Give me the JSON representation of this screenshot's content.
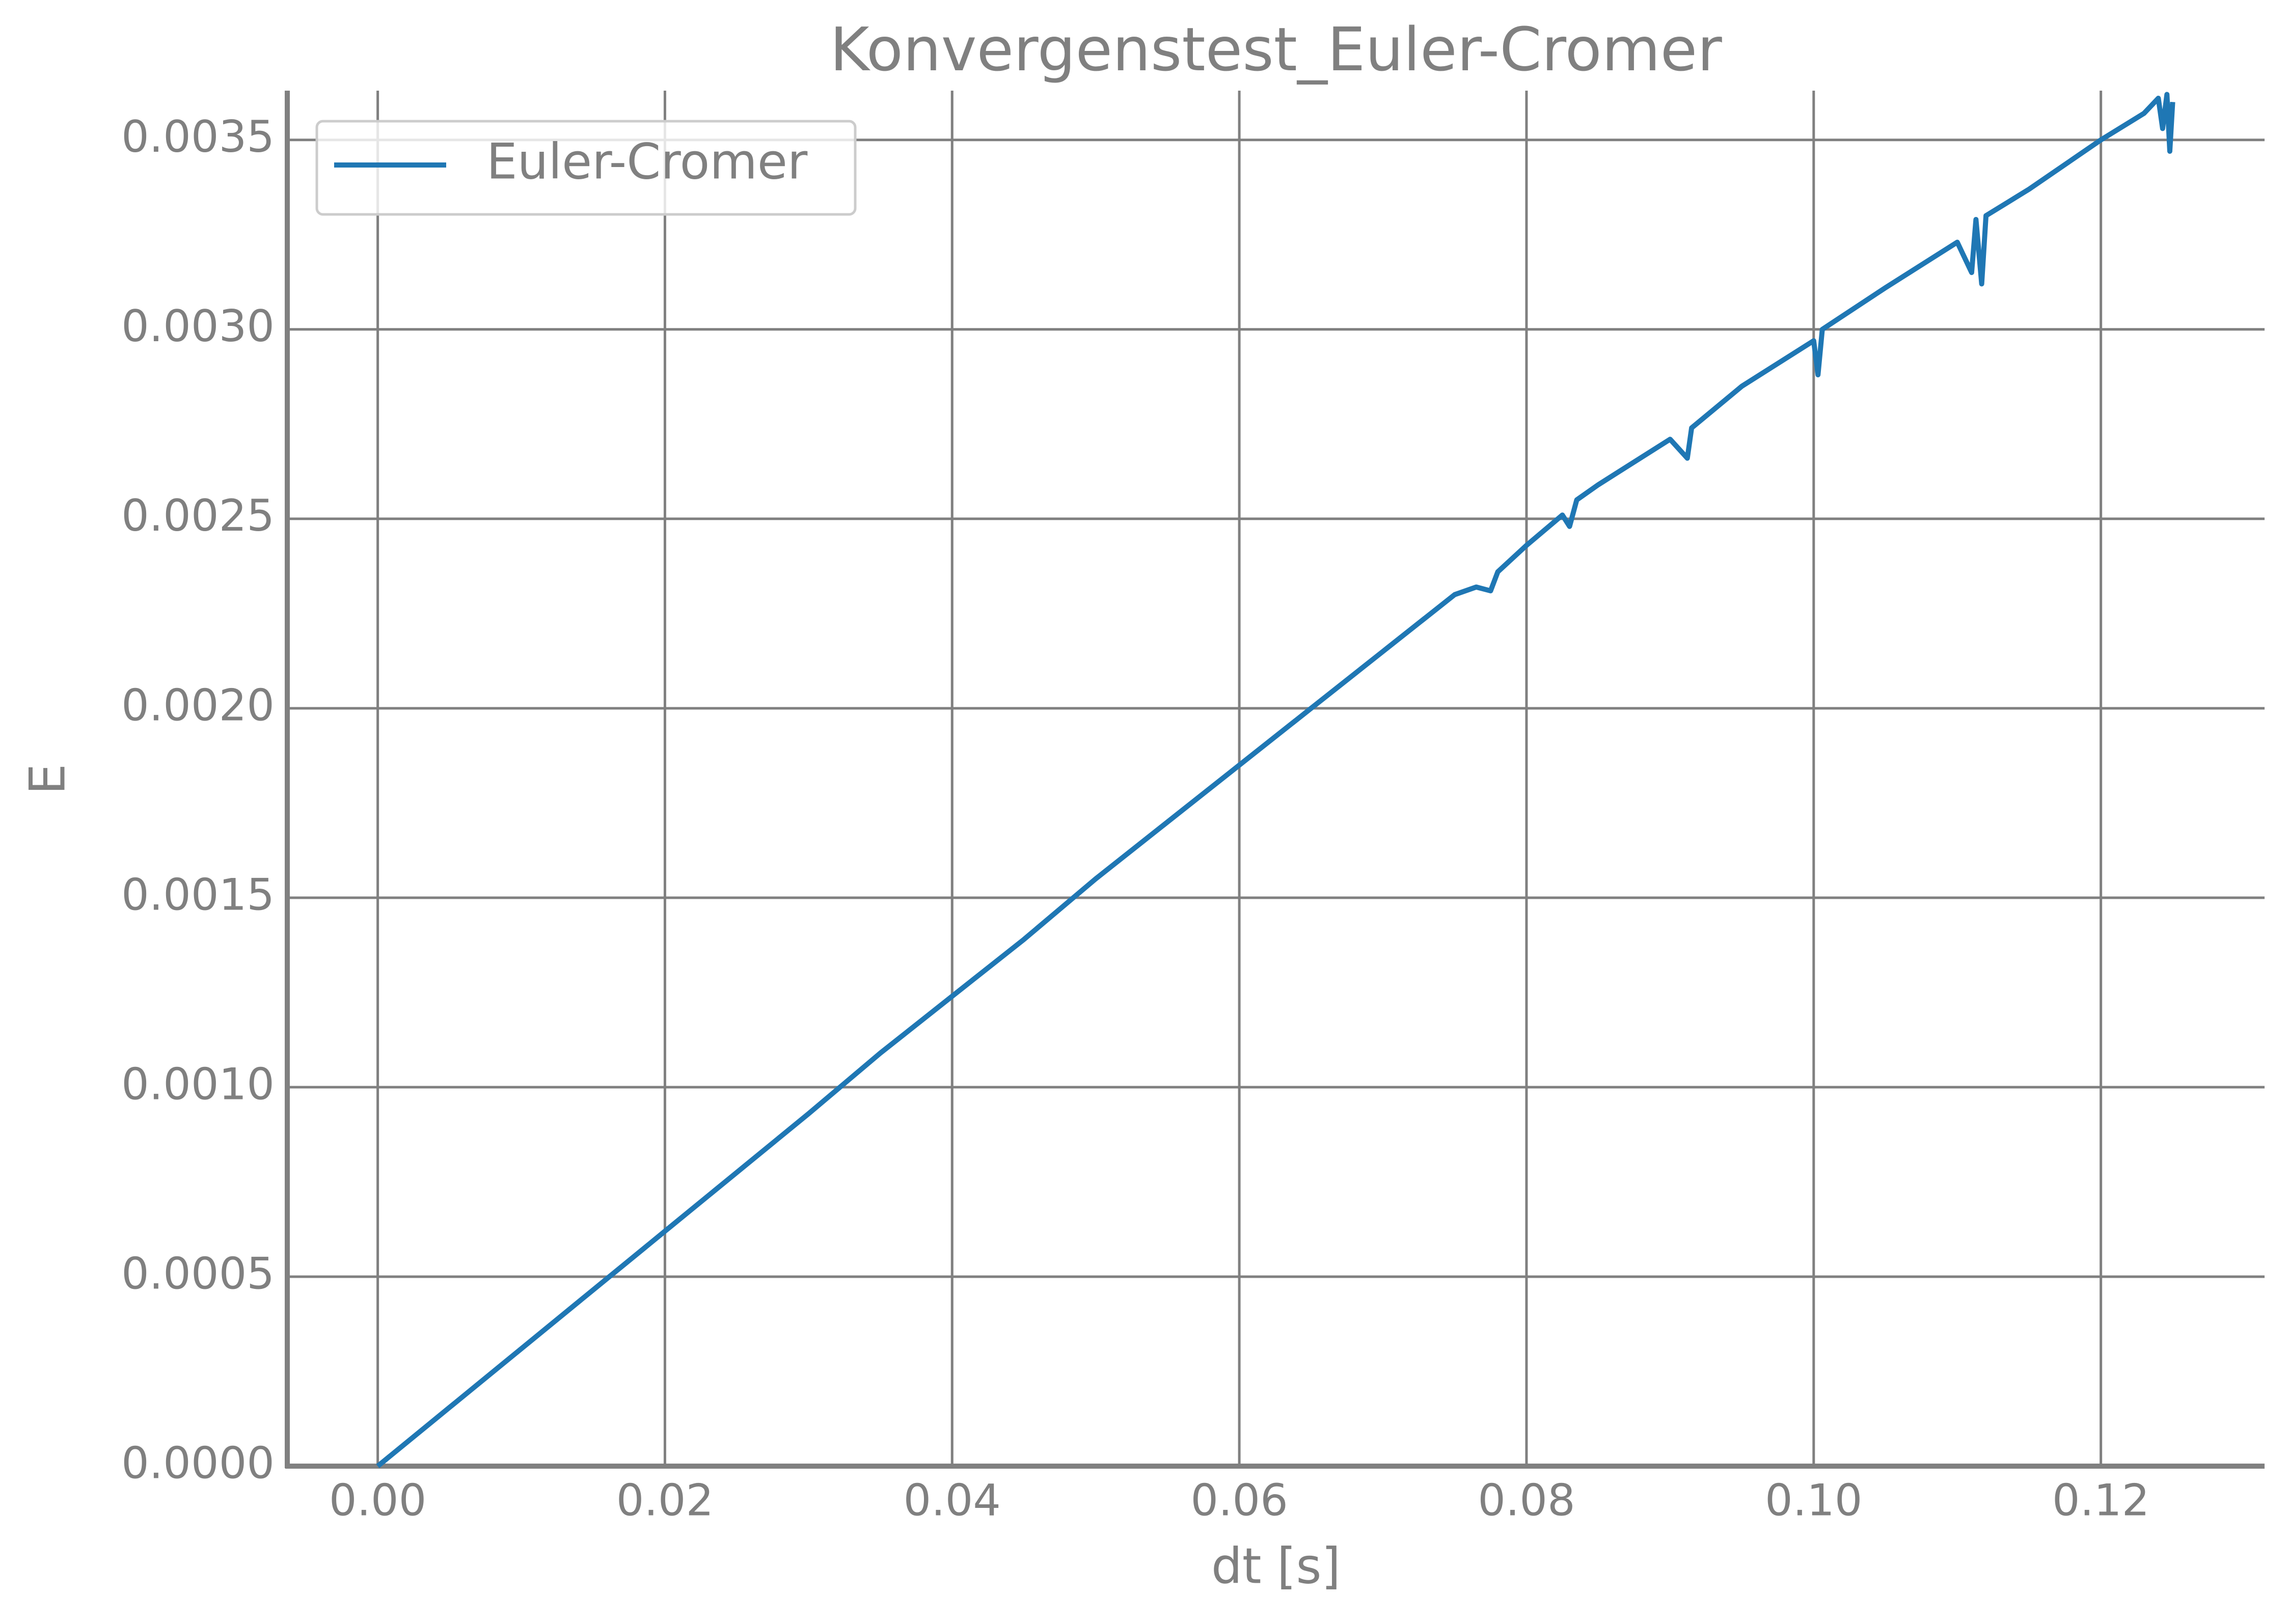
{
  "chart_data": {
    "type": "line",
    "title": "Konvergenstest_Euler-Cromer",
    "xlabel": "dt [s]",
    "ylabel": "E",
    "x": [
      0,
      0.005,
      0.01,
      0.015,
      0.02,
      0.025,
      0.03,
      0.035,
      0.04,
      0.045,
      0.05,
      0.055,
      0.06,
      0.065,
      0.07,
      0.075,
      0.0765,
      0.0775,
      0.078,
      0.08,
      0.0825,
      0.083,
      0.0835,
      0.085,
      0.09,
      0.0912,
      0.0915,
      0.095,
      0.1,
      0.1003,
      0.1006,
      0.105,
      0.11,
      0.111,
      0.1113,
      0.1117,
      0.112,
      0.115,
      0.12,
      0.123,
      0.124,
      0.1243,
      0.1246,
      0.1248,
      0.125
    ],
    "series": [
      {
        "name": "Euler-Cromer",
        "color": "#1f77b4",
        "values": [
          0,
          0.000155,
          0.00031,
          0.000465,
          0.00062,
          0.000775,
          0.00093,
          0.00109,
          0.00124,
          0.00139,
          0.00155,
          0.0017,
          0.00185,
          0.002,
          0.00215,
          0.0023,
          0.00232,
          0.00231,
          0.00236,
          0.00243,
          0.00251,
          0.00248,
          0.00255,
          0.00259,
          0.00271,
          0.00266,
          0.00274,
          0.00285,
          0.00297,
          0.00288,
          0.003,
          0.00311,
          0.00323,
          0.00315,
          0.00329,
          0.00312,
          0.0033,
          0.00337,
          0.0035,
          0.00357,
          0.00361,
          0.00353,
          0.00362,
          0.00347,
          0.0036
        ]
      }
    ],
    "xlim": [
      -0.0063,
      0.1314
    ],
    "ylim": [
      0,
      0.00363
    ],
    "xticks": [
      {
        "value": 0,
        "label": "0.00"
      },
      {
        "value": 0.02,
        "label": "0.02"
      },
      {
        "value": 0.04,
        "label": "0.04"
      },
      {
        "value": 0.06,
        "label": "0.06"
      },
      {
        "value": 0.08,
        "label": "0.08"
      },
      {
        "value": 0.1,
        "label": "0.10"
      },
      {
        "value": 0.12,
        "label": "0.12"
      }
    ],
    "yticks": [
      {
        "value": 0,
        "label": "0.0000"
      },
      {
        "value": 0.0005,
        "label": "0.0005"
      },
      {
        "value": 0.001,
        "label": "0.0010"
      },
      {
        "value": 0.0015,
        "label": "0.0015"
      },
      {
        "value": 0.002,
        "label": "0.0020"
      },
      {
        "value": 0.0025,
        "label": "0.0025"
      },
      {
        "value": 0.003,
        "label": "0.0030"
      },
      {
        "value": 0.0035,
        "label": "0.0035"
      }
    ],
    "grid": true,
    "legend": "upper left"
  }
}
